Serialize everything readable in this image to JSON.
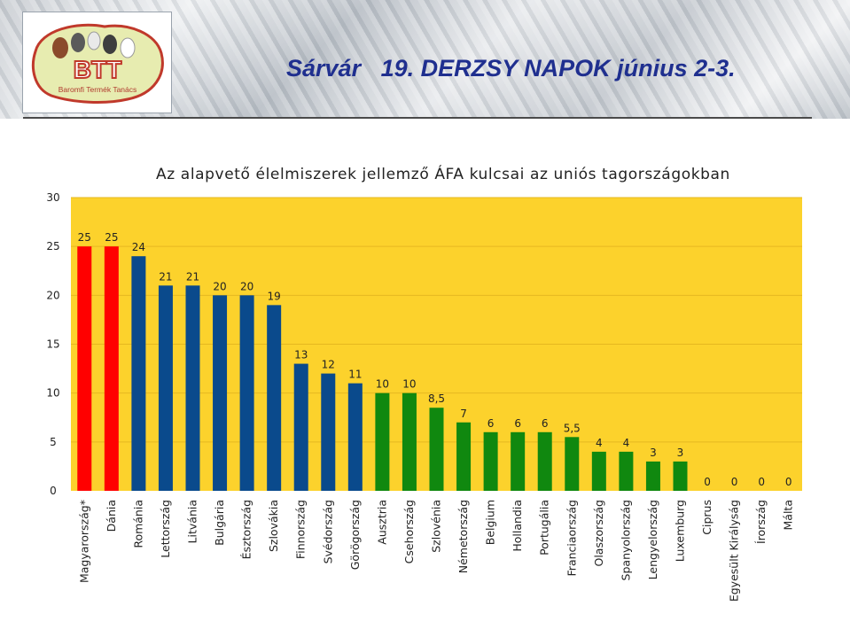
{
  "header": {
    "title": "Sárvár   19. DERZSY NAPOK június 2-3."
  },
  "logo": {
    "text": "BTT",
    "subtitle": "Baromfi Termék Tanács"
  },
  "chart_data": {
    "type": "bar",
    "title": "Az alapvető élelmiszerek jellemző ÁFA kulcsai az uniós tagországokban",
    "xlabel": "",
    "ylabel": "",
    "ylim": [
      0,
      30
    ],
    "yticks": [
      0,
      5,
      10,
      15,
      20,
      25,
      30
    ],
    "grid": true,
    "legend": "none",
    "background": "#fcd22c",
    "categories": [
      "Magyarország*",
      "Dánia",
      "Románia",
      "Lettország",
      "Litvánia",
      "Bulgária",
      "Észtország",
      "Szlovákia",
      "Finnország",
      "Svédország",
      "Görögország",
      "Ausztria",
      "Csehország",
      "Szlovénia",
      "Németország",
      "Belgium",
      "Hollandia",
      "Portugália",
      "Franciaország",
      "Olaszország",
      "Spanyolország",
      "Lengyelország",
      "Luxemburg",
      "Ciprus",
      "Egyesült Királyság",
      "Írország",
      "Málta"
    ],
    "values": [
      25,
      25,
      24,
      21,
      21,
      20,
      20,
      19,
      13,
      12,
      11,
      10,
      10,
      8.5,
      7,
      6,
      6,
      6,
      5.5,
      4,
      4,
      3,
      3,
      0,
      0,
      0,
      0
    ],
    "labels": [
      "25",
      "25",
      "24",
      "21",
      "21",
      "20",
      "20",
      "19",
      "13",
      "12",
      "11",
      "10",
      "10",
      "8,5",
      "7",
      "6",
      "6",
      "6",
      "5,5",
      "4",
      "4",
      "3",
      "3",
      "0",
      "0",
      "0",
      "0"
    ],
    "colors": [
      "#ff0000",
      "#ff0000",
      "#0a4a8c",
      "#0a4a8c",
      "#0a4a8c",
      "#0a4a8c",
      "#0a4a8c",
      "#0a4a8c",
      "#0a4a8c",
      "#0a4a8c",
      "#0a4a8c",
      "#10880f",
      "#10880f",
      "#10880f",
      "#10880f",
      "#10880f",
      "#10880f",
      "#10880f",
      "#10880f",
      "#10880f",
      "#10880f",
      "#10880f",
      "#10880f",
      "#10880f",
      "#10880f",
      "#10880f",
      "#10880f"
    ]
  }
}
